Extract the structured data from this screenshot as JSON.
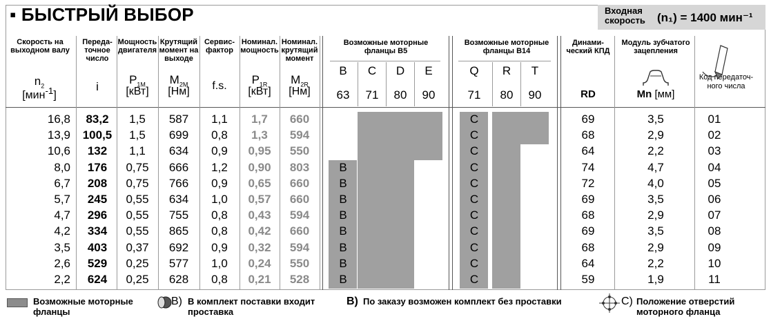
{
  "title": "▪ БЫСТРЫЙ ВЫБОР",
  "input_speed": {
    "label": "Входная скорость",
    "value": "(n₁) = 1400 мин⁻¹"
  },
  "headers": {
    "speed_out": "Скорость на выходном валу",
    "ratio": "Переда-точное число",
    "power": "Мощность двигателя",
    "torque": "Крутящий момент на выходе",
    "service": "Сервис-фактор",
    "nom_power": "Номинал. мощность",
    "nom_torque": "Номинал. крутящий момент",
    "b5": "Возможные моторные фланцы B5",
    "b14": "Возможные моторные фланцы B14",
    "eff": "Динами-ческий КПД",
    "module": "Модуль зубчатого зацепления",
    "code": "Код передаточ-ного числа"
  },
  "symbols": {
    "n2": "n",
    "n2_sub": "2",
    "n2_unit": "[мин",
    "n2_unit_sup": "-1",
    "n2_unit_end": "]",
    "i": "i",
    "p1m": "P",
    "p1m_sub": "1M",
    "p1m_unit": "[кВт]",
    "m2m": "M",
    "m2m_sub": "2M",
    "m2m_unit": "[Нм]",
    "fs": "f.s.",
    "p1r": "P",
    "p1r_sub": "1R",
    "p1r_unit": "[кВт]",
    "m2r": "M",
    "m2r_sub": "2R",
    "m2r_unit": "[Нм]",
    "rd": "RD",
    "mn": "Mn",
    "mn_unit": "[мм]"
  },
  "b5_letters": [
    "B",
    "C",
    "D",
    "E"
  ],
  "b5_sizes": [
    "63",
    "71",
    "80",
    "90"
  ],
  "b14_letters": [
    "Q",
    "R",
    "T"
  ],
  "b14_sizes": [
    "71",
    "80",
    "90"
  ],
  "rows": [
    {
      "n2": "16,8",
      "i": "83,2",
      "p1m": "1,5",
      "m2m": "587",
      "fs": "1,1",
      "p1r": "1,7",
      "m2r": "660",
      "b5": [
        0,
        1,
        1,
        1
      ],
      "b14": [
        1,
        1,
        1
      ],
      "b5_mark": "",
      "b14_mark": "C",
      "rd": "69",
      "mn": "3,5",
      "code": "01"
    },
    {
      "n2": "13,9",
      "i": "100,5",
      "p1m": "1,5",
      "m2m": "699",
      "fs": "0,8",
      "p1r": "1,3",
      "m2r": "594",
      "b5": [
        0,
        1,
        1,
        1
      ],
      "b14": [
        1,
        1,
        1
      ],
      "b5_mark": "",
      "b14_mark": "C",
      "rd": "68",
      "mn": "2,9",
      "code": "02"
    },
    {
      "n2": "10,6",
      "i": "132",
      "p1m": "1,1",
      "m2m": "634",
      "fs": "0,9",
      "p1r": "0,95",
      "m2r": "550",
      "b5": [
        0,
        1,
        1,
        1
      ],
      "b14": [
        1,
        1,
        0
      ],
      "b5_mark": "",
      "b14_mark": "C",
      "rd": "64",
      "mn": "2,2",
      "code": "03"
    },
    {
      "n2": "8,0",
      "i": "176",
      "p1m": "0,75",
      "m2m": "666",
      "fs": "1,2",
      "p1r": "0,90",
      "m2r": "803",
      "b5": [
        1,
        1,
        1,
        0
      ],
      "b14": [
        1,
        1,
        0
      ],
      "b5_mark": "B",
      "b14_mark": "C",
      "rd": "74",
      "mn": "4,7",
      "code": "04"
    },
    {
      "n2": "6,7",
      "i": "208",
      "p1m": "0,75",
      "m2m": "766",
      "fs": "0,9",
      "p1r": "0,65",
      "m2r": "660",
      "b5": [
        1,
        1,
        1,
        0
      ],
      "b14": [
        1,
        1,
        0
      ],
      "b5_mark": "B",
      "b14_mark": "C",
      "rd": "72",
      "mn": "4,0",
      "code": "05"
    },
    {
      "n2": "5,7",
      "i": "245",
      "p1m": "0,55",
      "m2m": "634",
      "fs": "1,0",
      "p1r": "0,57",
      "m2r": "660",
      "b5": [
        1,
        1,
        1,
        0
      ],
      "b14": [
        1,
        1,
        0
      ],
      "b5_mark": "B",
      "b14_mark": "C",
      "rd": "69",
      "mn": "3,5",
      "code": "06"
    },
    {
      "n2": "4,7",
      "i": "296",
      "p1m": "0,55",
      "m2m": "755",
      "fs": "0,8",
      "p1r": "0,43",
      "m2r": "594",
      "b5": [
        1,
        1,
        1,
        0
      ],
      "b14": [
        1,
        1,
        0
      ],
      "b5_mark": "B",
      "b14_mark": "C",
      "rd": "68",
      "mn": "2,9",
      "code": "07"
    },
    {
      "n2": "4,2",
      "i": "334",
      "p1m": "0,55",
      "m2m": "865",
      "fs": "0,8",
      "p1r": "0,42",
      "m2r": "660",
      "b5": [
        1,
        1,
        1,
        0
      ],
      "b14": [
        1,
        1,
        0
      ],
      "b5_mark": "B",
      "b14_mark": "C",
      "rd": "69",
      "mn": "3,5",
      "code": "08"
    },
    {
      "n2": "3,5",
      "i": "403",
      "p1m": "0,37",
      "m2m": "692",
      "fs": "0,9",
      "p1r": "0,32",
      "m2r": "594",
      "b5": [
        1,
        1,
        1,
        0
      ],
      "b14": [
        1,
        1,
        0
      ],
      "b5_mark": "B",
      "b14_mark": "C",
      "rd": "68",
      "mn": "2,9",
      "code": "09"
    },
    {
      "n2": "2,6",
      "i": "529",
      "p1m": "0,25",
      "m2m": "577",
      "fs": "1,0",
      "p1r": "0,24",
      "m2r": "550",
      "b5": [
        1,
        1,
        1,
        0
      ],
      "b14": [
        1,
        1,
        0
      ],
      "b5_mark": "B",
      "b14_mark": "C",
      "rd": "64",
      "mn": "2,2",
      "code": "10"
    },
    {
      "n2": "2,2",
      "i": "624",
      "p1m": "0,25",
      "m2m": "628",
      "fs": "0,8",
      "p1r": "0,21",
      "m2r": "528",
      "b5": [
        1,
        1,
        1,
        0
      ],
      "b14": [
        1,
        1,
        0
      ],
      "b5_mark": "B",
      "b14_mark": "C",
      "rd": "59",
      "mn": "1,9",
      "code": "11"
    }
  ],
  "legend": {
    "swatch": "Возможные моторные фланцы",
    "b_supplied_letter": "B)",
    "b_supplied": "В комплект поставки входит проставка",
    "b_order_letter": "B)",
    "b_order": "По заказу возможен комплект без проставки",
    "c_letter": "C)",
    "c_text": "Положение отверстий моторного фланца"
  },
  "colors": {
    "flange_fill": "#a0a0a0",
    "header_box": "#d6d6d6"
  }
}
